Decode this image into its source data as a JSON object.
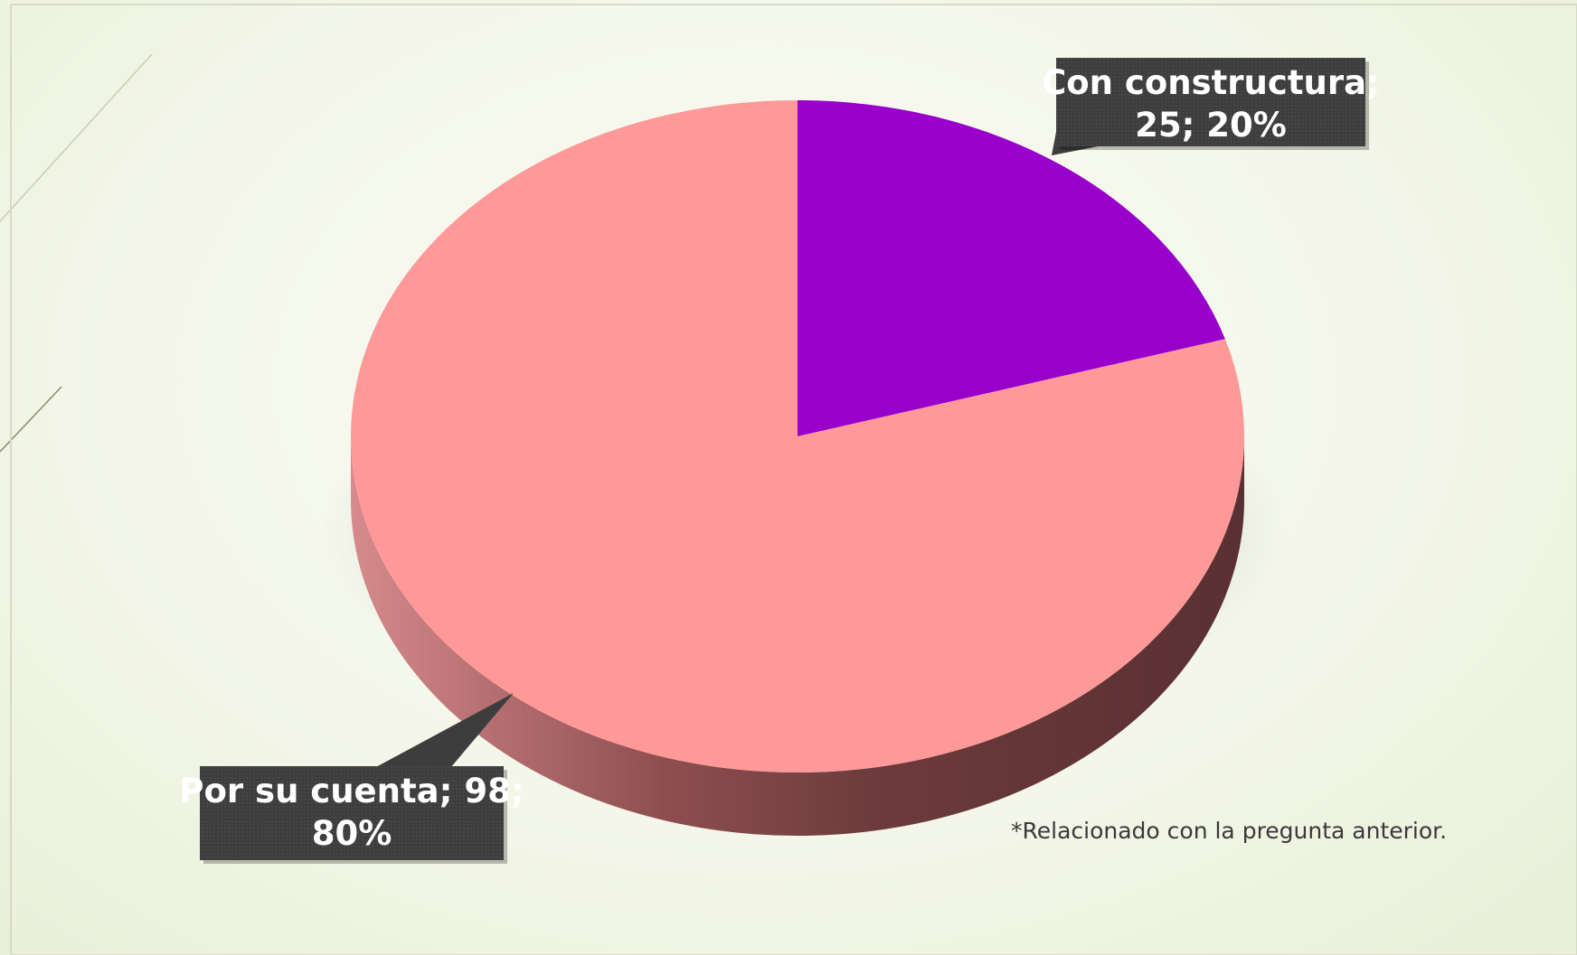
{
  "chart_data": {
    "type": "pie",
    "title": "",
    "style": "3d",
    "start_angle_deg": 0,
    "direction": "clockwise",
    "slices": [
      {
        "name": "Con constructura",
        "value": 25,
        "percent": "20%",
        "label_line1": "Con constructura;",
        "label_line2": "25; 20%",
        "color": "#9900cc"
      },
      {
        "name": "Por su cuenta",
        "value": 98,
        "percent": "80%",
        "label_line1": "Por su cuenta; 98;",
        "label_line2": "80%",
        "color": "#ff9999"
      }
    ],
    "label_box_color": "#3d3d3d",
    "side_color": "#8e4e50"
  },
  "footnote": "*Relacionado con la pregunta anterior."
}
